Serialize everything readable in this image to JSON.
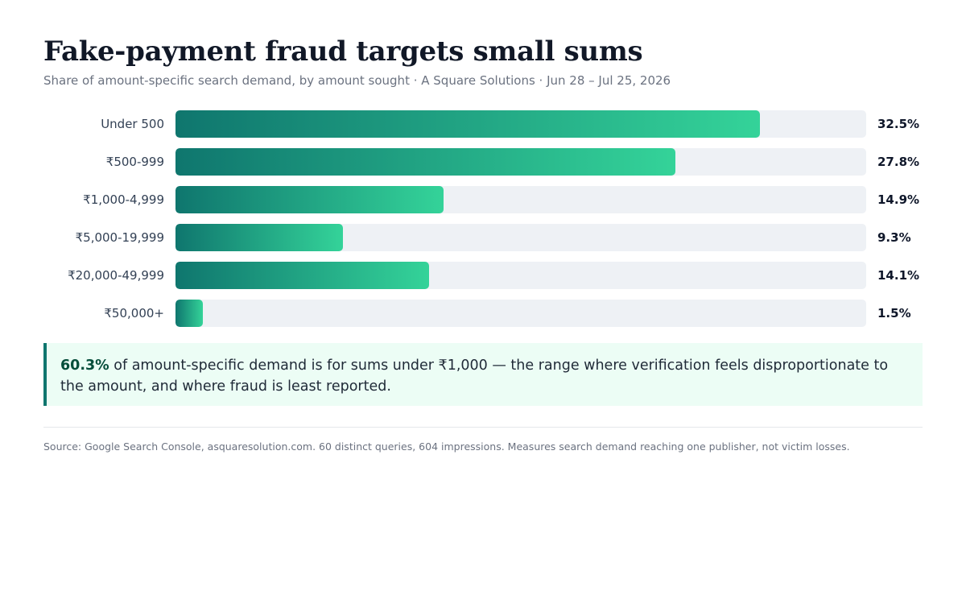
{
  "chart_data": {
    "type": "bar",
    "orientation": "horizontal",
    "title": "Fake-payment fraud targets small sums",
    "subtitle": "Share of amount-specific search demand, by amount sought · A Square Solutions · Jun 28 – Jul 25, 2026",
    "categories": [
      "Under 500",
      "₹500-999",
      "₹1,000-4,999",
      "₹5,000-19,999",
      "₹20,000-49,999",
      "₹50,000+"
    ],
    "values": [
      32.5,
      27.8,
      14.9,
      9.3,
      14.1,
      1.5
    ],
    "value_labels": [
      "32.5%",
      "27.8%",
      "14.9%",
      "9.3%",
      "14.1%",
      "1.5%"
    ],
    "unit": "%",
    "xlim": [
      0,
      38.4
    ],
    "grid": false,
    "legend": "none",
    "colors": {
      "bar_gradient_start": "#0f766e",
      "bar_gradient_end": "#34d399",
      "track": "#eef1f5"
    }
  },
  "callout": {
    "highlight": "60.3%",
    "text": " of amount-specific demand is for sums under ₹1,000 — the range where verification feels disproportionate to the amount, and where fraud is least reported."
  },
  "source": "Source: Google Search Console, asquaresolution.com. 60 distinct queries, 604 impressions. Measures search demand reaching one publisher, not victim losses.",
  "colors": {
    "callout_background": "#ecfdf5",
    "callout_border": "#0f766e"
  }
}
